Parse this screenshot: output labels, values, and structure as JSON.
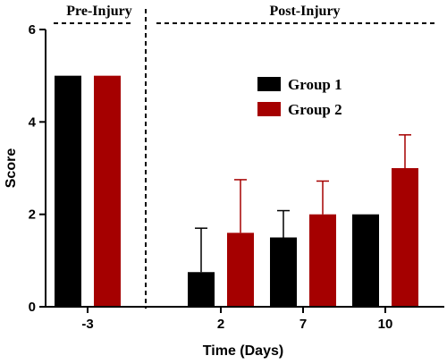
{
  "chart_data": {
    "type": "bar",
    "title": "",
    "xlabel": "Time (Days)",
    "ylabel": "Score",
    "categories": [
      "-3",
      "2",
      "7",
      "10"
    ],
    "ylim": [
      0,
      6
    ],
    "yticks": [
      "0",
      "2",
      "4",
      "6"
    ],
    "grid": false,
    "legend_position": "upper-right",
    "phases": [
      {
        "label": "Pre-Injury",
        "categories": [
          "-3"
        ]
      },
      {
        "label": "Post-Injury",
        "categories": [
          "2",
          "7",
          "10"
        ]
      }
    ],
    "series": [
      {
        "name": "Group 1",
        "color": "#000000",
        "values": [
          5,
          0.75,
          1.5,
          2
        ],
        "error_upper": [
          0,
          0.95,
          0.58,
          0
        ]
      },
      {
        "name": "Group 2",
        "color": "#A50000",
        "values": [
          5,
          1.6,
          2.0,
          3.0
        ],
        "error_upper": [
          0,
          1.15,
          0.72,
          0.72
        ]
      }
    ]
  }
}
